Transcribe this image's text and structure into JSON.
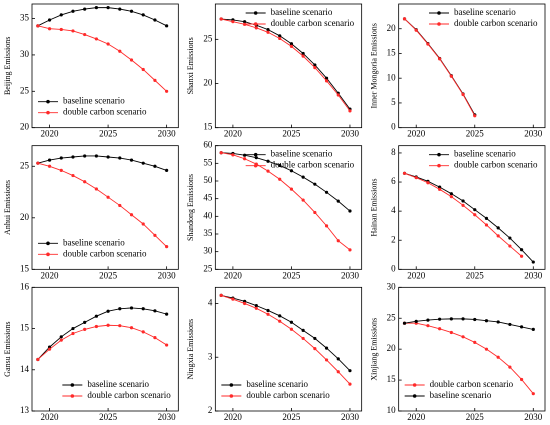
{
  "chart_data": [
    {
      "type": "line",
      "ylabel": "Beijing Emissions",
      "x": [
        2019,
        2020,
        2021,
        2022,
        2023,
        2024,
        2025,
        2026,
        2027,
        2028,
        2029,
        2030
      ],
      "xlim": [
        2018.5,
        2031
      ],
      "xticks": [
        2020,
        2025,
        2030
      ],
      "ylim": [
        20,
        37
      ],
      "yticks": [
        20,
        25,
        30,
        35
      ],
      "legend": "lower left",
      "series": [
        {
          "name": "baseline scenario",
          "color": "#000000",
          "values": [
            34,
            34.8,
            35.5,
            36,
            36.3,
            36.5,
            36.5,
            36.3,
            36,
            35.5,
            34.8,
            34
          ]
        },
        {
          "name": "double carbon scenario",
          "color": "#ff2a2a",
          "values": [
            34,
            33.6,
            33.5,
            33.3,
            32.8,
            32.2,
            31.5,
            30.5,
            29.3,
            28,
            26.5,
            25
          ]
        }
      ]
    },
    {
      "type": "line",
      "ylabel": "Shanxi Emissions",
      "x": [
        2019,
        2020,
        2021,
        2022,
        2023,
        2024,
        2025,
        2026,
        2027,
        2028,
        2029,
        2030
      ],
      "xlim": [
        2018.5,
        2031
      ],
      "xticks": [
        2020,
        2025,
        2030
      ],
      "ylim": [
        15,
        29
      ],
      "yticks": [
        15,
        20,
        25
      ],
      "legend": "upper right",
      "series": [
        {
          "name": "baseline scenario",
          "color": "#000000",
          "values": [
            27.3,
            27.2,
            27,
            26.6,
            26.1,
            25.4,
            24.5,
            23.4,
            22.1,
            20.6,
            18.9,
            17.1
          ]
        },
        {
          "name": "double carbon scenario",
          "color": "#ff2a2a",
          "values": [
            27.3,
            27,
            26.7,
            26.3,
            25.8,
            25.1,
            24.2,
            23.1,
            21.8,
            20.3,
            18.7,
            16.9
          ]
        }
      ]
    },
    {
      "type": "line",
      "ylabel": "Inner Mongoria Emissions",
      "x": [
        2019,
        2020,
        2021,
        2022,
        2023,
        2024,
        2025
      ],
      "xlim": [
        2018.5,
        2031
      ],
      "xticks": [
        2020,
        2025,
        2030
      ],
      "ylim": [
        0,
        25
      ],
      "yticks": [
        0,
        5,
        10,
        15,
        20
      ],
      "legend": "upper right",
      "series": [
        {
          "name": "baseline scenario",
          "color": "#000000",
          "values": [
            22,
            19.8,
            17,
            14,
            10.5,
            6.8,
            2.6
          ]
        },
        {
          "name": "double carbon scenario",
          "color": "#ff2a2a",
          "values": [
            22,
            19.7,
            16.9,
            13.9,
            10.4,
            6.7,
            2.4
          ]
        }
      ]
    },
    {
      "type": "line",
      "ylabel": "Anhui Emissions",
      "x": [
        2019,
        2020,
        2021,
        2022,
        2023,
        2024,
        2025,
        2026,
        2027,
        2028,
        2029,
        2030
      ],
      "xlim": [
        2018.5,
        2031
      ],
      "xticks": [
        2020,
        2025,
        2030
      ],
      "ylim": [
        15,
        27
      ],
      "yticks": [
        15,
        20,
        25
      ],
      "legend": "lower left",
      "series": [
        {
          "name": "baseline scenario",
          "color": "#000000",
          "values": [
            25.3,
            25.6,
            25.8,
            25.9,
            26,
            26,
            25.9,
            25.8,
            25.6,
            25.3,
            25,
            24.6
          ]
        },
        {
          "name": "double carbon scenario",
          "color": "#ff2a2a",
          "values": [
            25.3,
            25,
            24.6,
            24.1,
            23.5,
            22.8,
            22,
            21.2,
            20.3,
            19.4,
            18.3,
            17.2
          ]
        }
      ]
    },
    {
      "type": "line",
      "ylabel": "Shandong Emissions",
      "x": [
        2019,
        2020,
        2021,
        2022,
        2023,
        2024,
        2025,
        2026,
        2027,
        2028,
        2029,
        2030
      ],
      "xlim": [
        2018.5,
        2031
      ],
      "xticks": [
        2020,
        2025,
        2030
      ],
      "ylim": [
        25,
        60
      ],
      "yticks": [
        25,
        30,
        35,
        40,
        45,
        50,
        55,
        60
      ],
      "legend": "upper right",
      "series": [
        {
          "name": "baseline scenario",
          "color": "#000000",
          "values": [
            58,
            57.8,
            57.3,
            56.6,
            55.6,
            54.4,
            52.9,
            51.1,
            49.1,
            46.8,
            44.3,
            41.5
          ]
        },
        {
          "name": "double carbon scenario",
          "color": "#ff2a2a",
          "values": [
            58,
            57.4,
            56.3,
            54.8,
            52.8,
            50.5,
            47.7,
            44.6,
            41.1,
            37.3,
            33.1,
            30.5
          ]
        }
      ]
    },
    {
      "type": "line",
      "ylabel": "Hainan Emissions",
      "x": [
        2019,
        2020,
        2021,
        2022,
        2023,
        2024,
        2025,
        2026,
        2027,
        2028,
        2029,
        2030
      ],
      "xlim": [
        2018.5,
        2031
      ],
      "xticks": [
        2020,
        2025,
        2030
      ],
      "ylim": [
        0,
        8.5
      ],
      "yticks": [
        0,
        2,
        4,
        6,
        8
      ],
      "legend": "upper right",
      "series": [
        {
          "name": "baseline scenario",
          "color": "#000000",
          "values": [
            6.6,
            6.35,
            6.05,
            5.65,
            5.2,
            4.7,
            4.1,
            3.5,
            2.85,
            2.15,
            1.35,
            0.5
          ]
        },
        {
          "name": "double carbon scenario",
          "color": "#ff2a2a",
          "values": [
            6.6,
            6.3,
            5.95,
            5.5,
            5,
            4.4,
            3.75,
            3.05,
            2.3,
            1.6,
            0.9,
            null
          ]
        }
      ]
    },
    {
      "type": "line",
      "ylabel": "Gansu Emissions",
      "x": [
        2019,
        2020,
        2021,
        2022,
        2023,
        2024,
        2025,
        2026,
        2027,
        2028,
        2029,
        2030
      ],
      "xlim": [
        2018.5,
        2031
      ],
      "xticks": [
        2020,
        2025,
        2030
      ],
      "ylim": [
        13,
        16
      ],
      "yticks": [
        13,
        14,
        15,
        16
      ],
      "legend": "lower right",
      "series": [
        {
          "name": "baseline scenario",
          "color": "#000000",
          "values": [
            14.25,
            14.55,
            14.8,
            15,
            15.15,
            15.3,
            15.42,
            15.48,
            15.5,
            15.48,
            15.43,
            15.35
          ]
        },
        {
          "name": "double carbon scenario",
          "color": "#ff2a2a",
          "values": [
            14.25,
            14.5,
            14.72,
            14.88,
            14.98,
            15.05,
            15.08,
            15.07,
            15.02,
            14.92,
            14.78,
            14.6
          ]
        }
      ]
    },
    {
      "type": "line",
      "ylabel": "Ningxia Emissions",
      "x": [
        2019,
        2020,
        2021,
        2022,
        2023,
        2024,
        2025,
        2026,
        2027,
        2028,
        2029,
        2030
      ],
      "xlim": [
        2018.5,
        2031
      ],
      "xticks": [
        2020,
        2025,
        2030
      ],
      "ylim": [
        2,
        4.3
      ],
      "yticks": [
        2,
        3,
        4
      ],
      "legend": "lower left",
      "series": [
        {
          "name": "baseline scenario",
          "color": "#000000",
          "values": [
            4.15,
            4.1,
            4.04,
            3.96,
            3.87,
            3.77,
            3.65,
            3.5,
            3.35,
            3.17,
            2.97,
            2.75
          ]
        },
        {
          "name": "double carbon scenario",
          "color": "#ff2a2a",
          "values": [
            4.15,
            4.08,
            4,
            3.91,
            3.8,
            3.67,
            3.52,
            3.35,
            3.16,
            2.95,
            2.73,
            2.5
          ]
        }
      ]
    },
    {
      "type": "line",
      "ylabel": "Xinjiang Emissions",
      "x": [
        2019,
        2020,
        2021,
        2022,
        2023,
        2024,
        2025,
        2026,
        2027,
        2028,
        2029,
        2030
      ],
      "xlim": [
        2018.5,
        2031
      ],
      "xticks": [
        2020,
        2025,
        2030
      ],
      "ylim": [
        10,
        30
      ],
      "yticks": [
        10,
        15,
        20,
        25,
        30
      ],
      "legend": "lower left",
      "series": [
        {
          "name": "double carbon scenario",
          "color": "#ff2a2a",
          "values": [
            24.2,
            24.2,
            23.8,
            23.3,
            22.7,
            22,
            21.1,
            20,
            18.7,
            17.1,
            15.1,
            12.8
          ]
        },
        {
          "name": "baseline scenario",
          "color": "#000000",
          "values": [
            24.2,
            24.5,
            24.7,
            24.85,
            24.9,
            24.9,
            24.8,
            24.6,
            24.4,
            24,
            23.6,
            23.2
          ]
        }
      ]
    }
  ]
}
